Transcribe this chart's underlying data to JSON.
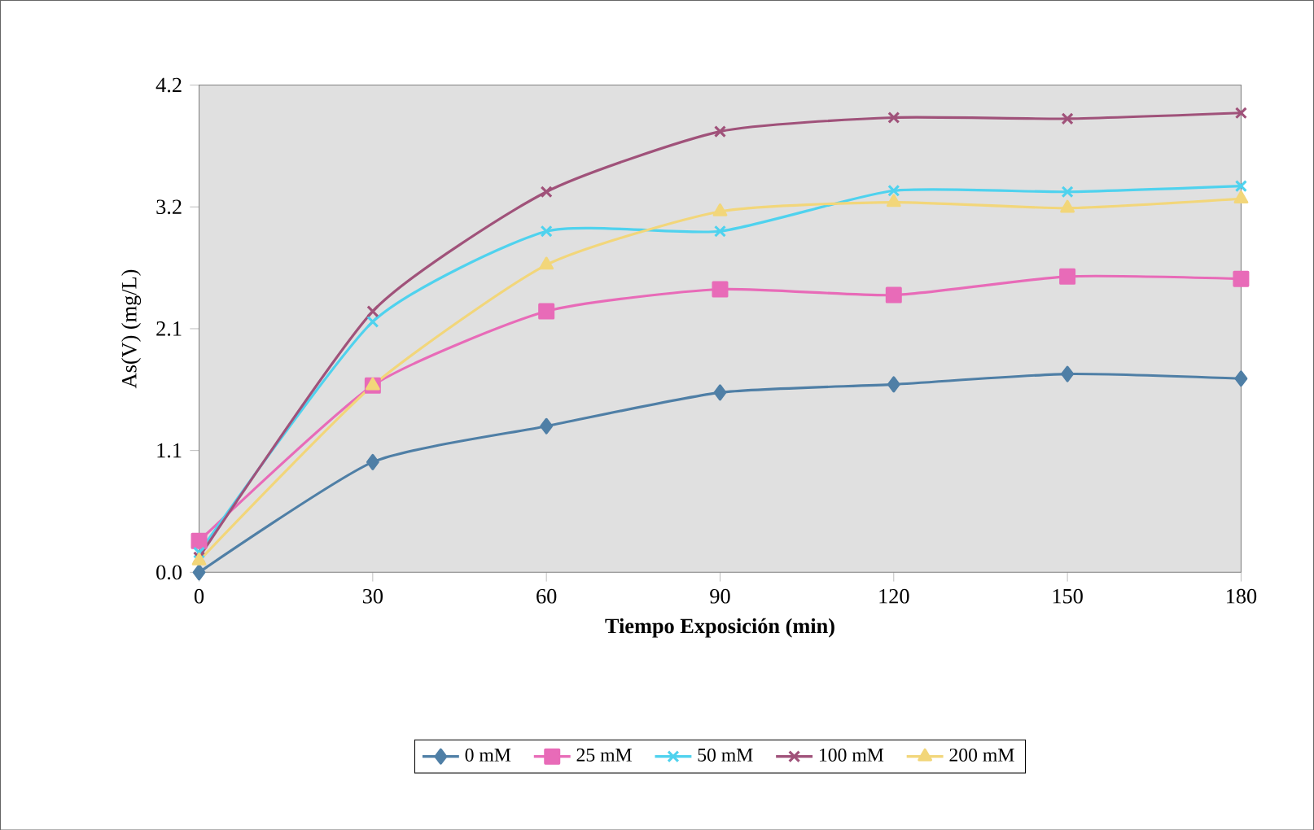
{
  "chart_data": {
    "type": "line",
    "xlabel": "Tiempo Exposición (min)",
    "ylabel": "As(V) (mg/L)",
    "x": [
      0,
      30,
      60,
      90,
      120,
      150,
      180
    ],
    "xlim": [
      0,
      180
    ],
    "xticks": [
      0,
      30,
      60,
      90,
      120,
      150,
      180
    ],
    "ylim": [
      0,
      4.2
    ],
    "yticks": [
      {
        "value": 0,
        "label": "0.0"
      },
      {
        "value": 1.05,
        "label": "1.1"
      },
      {
        "value": 2.1,
        "label": "2.1"
      },
      {
        "value": 3.15,
        "label": "3.2"
      },
      {
        "value": 4.2,
        "label": "4.2"
      }
    ],
    "legend": "bottom",
    "series": [
      {
        "name": "0 mM",
        "color": "#4f7fa6",
        "marker": "diamond",
        "values": [
          0.0,
          0.95,
          1.26,
          1.55,
          1.62,
          1.71,
          1.67
        ]
      },
      {
        "name": "25 mM",
        "color": "#e86bb8",
        "marker": "square",
        "values": [
          0.27,
          1.61,
          2.25,
          2.44,
          2.39,
          2.55,
          2.53
        ]
      },
      {
        "name": "50 mM",
        "color": "#4fd2ee",
        "marker": "cross",
        "values": [
          0.17,
          2.16,
          2.94,
          2.94,
          3.29,
          3.28,
          3.33
        ]
      },
      {
        "name": "100 mM",
        "color": "#a0527a",
        "marker": "cross",
        "values": [
          0.13,
          2.25,
          3.28,
          3.8,
          3.92,
          3.91,
          3.96
        ]
      },
      {
        "name": "200 mM",
        "color": "#f2d67a",
        "marker": "triangle",
        "values": [
          0.1,
          1.61,
          2.65,
          3.11,
          3.19,
          3.14,
          3.22
        ]
      }
    ]
  }
}
